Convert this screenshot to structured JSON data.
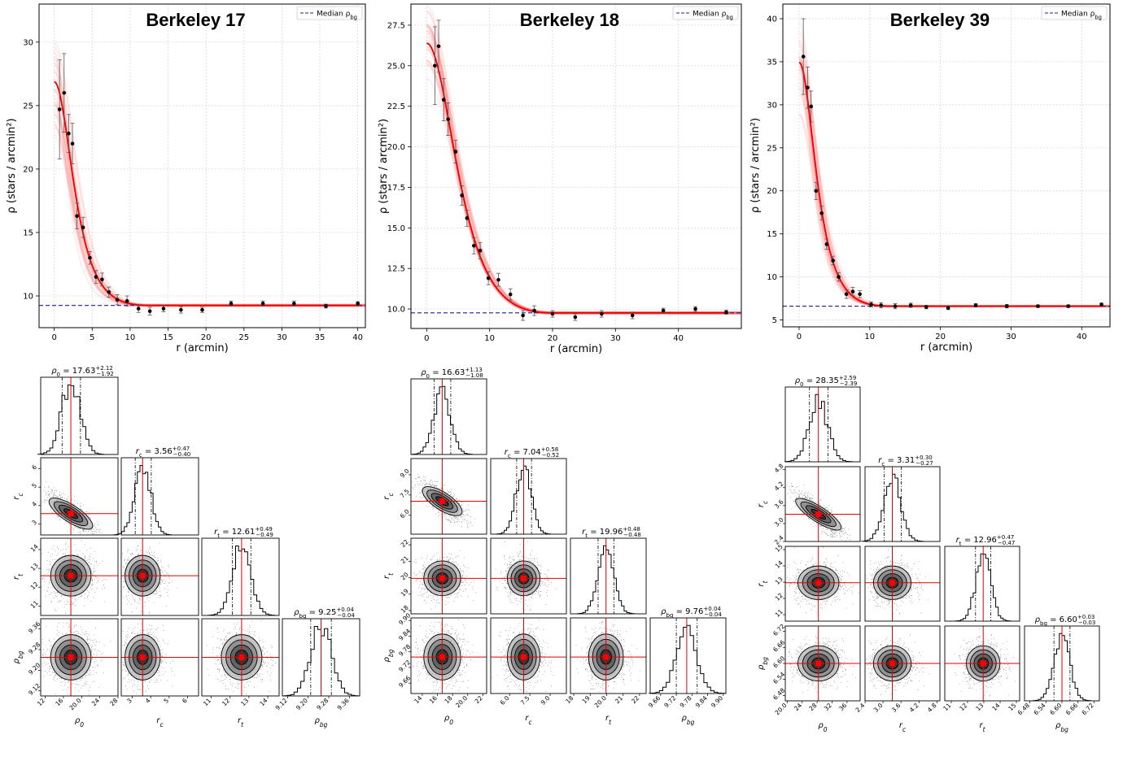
{
  "panels": [
    {
      "cluster": "Berkeley 17",
      "legend_label": "Median ρ_bg",
      "profile": {
        "xlabel": "r (arcmin)",
        "ylabel": "ρ (stars / arcmin²)",
        "xlim": [
          -2,
          41
        ],
        "ylim": [
          7.5,
          33
        ],
        "xticks": [
          0,
          5,
          10,
          15,
          20,
          25,
          30,
          35,
          40
        ],
        "yticks": [
          10,
          15,
          20,
          25,
          30
        ],
        "model": {
          "rho0": 17.63,
          "rc": 3.56,
          "rt": 12.61,
          "rho_bg": 9.25
        },
        "points": [
          {
            "x": 0.7,
            "y": 24.7,
            "err": 3.9
          },
          {
            "x": 1.3,
            "y": 26.0,
            "err": 3.1
          },
          {
            "x": 1.9,
            "y": 22.8,
            "err": 1.5
          },
          {
            "x": 2.4,
            "y": 22.0,
            "err": 1.6
          },
          {
            "x": 3.0,
            "y": 16.3,
            "err": 1.0
          },
          {
            "x": 3.8,
            "y": 15.4,
            "err": 0.8
          },
          {
            "x": 4.7,
            "y": 13.0,
            "err": 0.5
          },
          {
            "x": 5.5,
            "y": 11.5,
            "err": 0.5
          },
          {
            "x": 6.3,
            "y": 11.3,
            "err": 0.5
          },
          {
            "x": 7.2,
            "y": 10.3,
            "err": 0.4
          },
          {
            "x": 8.3,
            "y": 9.7,
            "err": 0.4
          },
          {
            "x": 9.6,
            "y": 9.6,
            "err": 0.4
          },
          {
            "x": 11.1,
            "y": 9.0,
            "err": 0.3
          },
          {
            "x": 12.6,
            "y": 8.8,
            "err": 0.3
          },
          {
            "x": 14.4,
            "y": 9.0,
            "err": 0.25
          },
          {
            "x": 16.7,
            "y": 8.9,
            "err": 0.25
          },
          {
            "x": 19.5,
            "y": 8.9,
            "err": 0.2
          },
          {
            "x": 23.3,
            "y": 9.4,
            "err": 0.2
          },
          {
            "x": 27.5,
            "y": 9.4,
            "err": 0.2
          },
          {
            "x": 31.6,
            "y": 9.4,
            "err": 0.2
          },
          {
            "x": 35.8,
            "y": 9.2,
            "err": 0.15
          },
          {
            "x": 40.0,
            "y": 9.4,
            "err": 0.15
          }
        ]
      },
      "params": [
        {
          "label": "ρ₀",
          "title": "ρ₀ = 17.63",
          "med": 17.63,
          "plus": 2.12,
          "minus": 1.92,
          "sup": "+2.12",
          "sub": "−1.92",
          "lim": [
            11,
            28
          ],
          "ticks": [
            12,
            16,
            20,
            24,
            28
          ]
        },
        {
          "label": "r_c",
          "title": "r_c = 3.56",
          "med": 3.56,
          "plus": 0.47,
          "minus": 0.4,
          "sup": "+0.47",
          "sub": "−0.40",
          "lim": [
            2.4,
            6.6
          ],
          "ticks": [
            3,
            4,
            5,
            6
          ]
        },
        {
          "label": "r_t",
          "title": "r_t = 12.61",
          "med": 12.61,
          "plus": 0.49,
          "minus": 0.49,
          "sup": "+0.49",
          "sub": "−0.49",
          "lim": [
            10.5,
            14.6
          ],
          "ticks": [
            11,
            12,
            13,
            14
          ]
        },
        {
          "label": "ρ_bg",
          "title": "ρ_bg = 9.25",
          "med": 9.25,
          "plus": 0.04,
          "minus": 0.04,
          "sup": "+0.04",
          "sub": "−0.04",
          "lim": [
            9.1,
            9.4
          ],
          "ticks": [
            9.12,
            9.2,
            9.28,
            9.36
          ]
        }
      ],
      "corr01": -0.8
    },
    {
      "cluster": "Berkeley 18",
      "legend_label": "Median ρ_bg",
      "profile": {
        "xlabel": "r (arcmin)",
        "ylabel": "ρ (stars / arcmin²)",
        "xlim": [
          -2.5,
          50
        ],
        "ylim": [
          8.8,
          28.8
        ],
        "xticks": [
          0,
          10,
          20,
          30,
          40
        ],
        "yticks": [
          10.0,
          12.5,
          15.0,
          17.5,
          20.0,
          22.5,
          25.0,
          27.5
        ],
        "model": {
          "rho0": 16.63,
          "rc": 7.04,
          "rt": 19.96,
          "rho_bg": 9.76
        },
        "points": [
          {
            "x": 1.3,
            "y": 25.0,
            "err": 2.4
          },
          {
            "x": 1.9,
            "y": 26.2,
            "err": 1.6
          },
          {
            "x": 2.7,
            "y": 22.9,
            "err": 1.3
          },
          {
            "x": 3.4,
            "y": 21.7,
            "err": 1.0
          },
          {
            "x": 4.6,
            "y": 19.7,
            "err": 0.7
          },
          {
            "x": 5.6,
            "y": 17.0,
            "err": 0.6
          },
          {
            "x": 6.4,
            "y": 15.6,
            "err": 0.5
          },
          {
            "x": 7.5,
            "y": 13.9,
            "err": 0.5
          },
          {
            "x": 8.5,
            "y": 13.6,
            "err": 0.5
          },
          {
            "x": 9.8,
            "y": 11.9,
            "err": 0.4
          },
          {
            "x": 11.4,
            "y": 11.8,
            "err": 0.4
          },
          {
            "x": 13.3,
            "y": 10.9,
            "err": 0.35
          },
          {
            "x": 15.3,
            "y": 9.6,
            "err": 0.3
          },
          {
            "x": 17.1,
            "y": 9.9,
            "err": 0.3
          },
          {
            "x": 20.0,
            "y": 9.7,
            "err": 0.2
          },
          {
            "x": 23.6,
            "y": 9.5,
            "err": 0.2
          },
          {
            "x": 27.8,
            "y": 9.7,
            "err": 0.2
          },
          {
            "x": 32.7,
            "y": 9.6,
            "err": 0.2
          },
          {
            "x": 37.6,
            "y": 9.9,
            "err": 0.15
          },
          {
            "x": 42.7,
            "y": 10.0,
            "err": 0.15
          },
          {
            "x": 47.6,
            "y": 9.8,
            "err": 0.12
          }
        ]
      },
      "params": [
        {
          "label": "ρ₀",
          "title": "ρ₀ = 16.63",
          "med": 16.63,
          "plus": 1.13,
          "minus": 1.08,
          "sup": "+1.13",
          "sub": "−1.08",
          "lim": [
            12.5,
            22.5
          ],
          "ticks": [
            14,
            16,
            18,
            20,
            22
          ]
        },
        {
          "label": "r_c",
          "title": "r_c = 7.04",
          "med": 7.04,
          "plus": 0.58,
          "minus": 0.52,
          "sup": "+0.58",
          "sub": "−0.52",
          "lim": [
            4.6,
            10.2
          ],
          "ticks": [
            6.0,
            7.5,
            9.0
          ]
        },
        {
          "label": "r_t",
          "title": "r_t = 19.96",
          "med": 19.96,
          "plus": 0.48,
          "minus": 0.48,
          "sup": "+0.48",
          "sub": "−0.48",
          "lim": [
            17.8,
            22.4
          ],
          "ticks": [
            18,
            19,
            20,
            21,
            22
          ]
        },
        {
          "label": "ρ_bg",
          "title": "ρ_bg = 9.76",
          "med": 9.76,
          "plus": 0.04,
          "minus": 0.04,
          "sup": "+0.04",
          "sub": "−0.04",
          "lim": [
            9.62,
            9.91
          ],
          "ticks": [
            9.66,
            9.72,
            9.78,
            9.84,
            9.9
          ]
        }
      ],
      "corr01": -0.75
    },
    {
      "cluster": "Berkeley 39",
      "legend_label": "Median ρ_bg",
      "profile": {
        "xlabel": "r (arcmin)",
        "ylabel": "ρ (stars / arcmin²)",
        "xlim": [
          -2.3,
          44
        ],
        "ylim": [
          4.2,
          41.7
        ],
        "xticks": [
          0,
          10,
          20,
          30,
          40
        ],
        "yticks": [
          5,
          10,
          15,
          20,
          25,
          30,
          35,
          40
        ],
        "model": {
          "rho0": 28.35,
          "rc": 3.31,
          "rt": 12.96,
          "rho_bg": 6.6
        },
        "points": [
          {
            "x": 0.6,
            "y": 35.6,
            "err": 4.4
          },
          {
            "x": 1.2,
            "y": 32.0,
            "err": 2.4
          },
          {
            "x": 1.7,
            "y": 29.8,
            "err": 1.8
          },
          {
            "x": 2.4,
            "y": 20.0,
            "err": 1.0
          },
          {
            "x": 3.2,
            "y": 17.4,
            "err": 0.8
          },
          {
            "x": 3.9,
            "y": 13.8,
            "err": 0.6
          },
          {
            "x": 4.8,
            "y": 11.9,
            "err": 0.5
          },
          {
            "x": 5.6,
            "y": 10.0,
            "err": 0.5
          },
          {
            "x": 6.7,
            "y": 8.0,
            "err": 0.5
          },
          {
            "x": 7.6,
            "y": 8.3,
            "err": 0.5
          },
          {
            "x": 8.6,
            "y": 8.0,
            "err": 0.4
          },
          {
            "x": 10.2,
            "y": 6.8,
            "err": 0.3
          },
          {
            "x": 11.6,
            "y": 6.7,
            "err": 0.3
          },
          {
            "x": 13.6,
            "y": 6.6,
            "err": 0.3
          },
          {
            "x": 15.8,
            "y": 6.7,
            "err": 0.25
          },
          {
            "x": 18.0,
            "y": 6.5,
            "err": 0.2
          },
          {
            "x": 21.1,
            "y": 6.4,
            "err": 0.2
          },
          {
            "x": 25.0,
            "y": 6.7,
            "err": 0.2
          },
          {
            "x": 29.4,
            "y": 6.6,
            "err": 0.2
          },
          {
            "x": 33.8,
            "y": 6.6,
            "err": 0.15
          },
          {
            "x": 38.1,
            "y": 6.6,
            "err": 0.15
          },
          {
            "x": 42.8,
            "y": 6.8,
            "err": 0.15
          }
        ]
      },
      "params": [
        {
          "label": "ρ₀",
          "title": "ρ₀ = 28.35",
          "med": 28.35,
          "plus": 2.59,
          "minus": 2.39,
          "sup": "+2.59",
          "sub": "−2.39",
          "lim": [
            19.5,
            39.5
          ],
          "ticks": [
            20,
            24,
            28,
            32,
            36
          ]
        },
        {
          "label": "r_c",
          "title": "r_c = 3.31",
          "med": 3.31,
          "plus": 0.3,
          "minus": 0.27,
          "sup": "+0.30",
          "sub": "−0.27",
          "lim": [
            2.4,
            4.9
          ],
          "ticks": [
            2.4,
            3.0,
            3.6,
            4.2,
            4.8
          ]
        },
        {
          "label": "r_t",
          "title": "r_t = 12.96",
          "med": 12.96,
          "plus": 0.47,
          "minus": 0.47,
          "sup": "+0.47",
          "sub": "−0.47",
          "lim": [
            10.6,
            15.2
          ],
          "ticks": [
            11,
            12,
            13,
            14,
            15
          ]
        },
        {
          "label": "ρ_bg",
          "title": "ρ_bg = 6.60",
          "med": 6.6,
          "plus": 0.03,
          "minus": 0.03,
          "sup": "+0.03",
          "sub": "−0.03",
          "lim": [
            6.46,
            6.74
          ],
          "ticks": [
            6.48,
            6.54,
            6.6,
            6.66,
            6.72
          ]
        }
      ],
      "corr01": -0.85
    }
  ],
  "chart_data": [
    {
      "type": "scatter",
      "title": "Berkeley 17",
      "xlabel": "r (arcmin)",
      "ylabel": "ρ (stars / arcmin²)",
      "xlim": [
        -2,
        41
      ],
      "ylim": [
        7.5,
        33
      ],
      "grid": true,
      "legend": "top-right",
      "series": [
        {
          "name": "Median ρ_bg",
          "y_constant": 9.25
        }
      ]
    },
    {
      "type": "scatter",
      "title": "Berkeley 18",
      "xlabel": "r (arcmin)",
      "ylabel": "ρ (stars / arcmin²)",
      "xlim": [
        -2.5,
        50
      ],
      "ylim": [
        8.8,
        28.8
      ],
      "grid": true,
      "legend": "top-right",
      "series": [
        {
          "name": "Median ρ_bg",
          "y_constant": 9.76
        }
      ]
    },
    {
      "type": "scatter",
      "title": "Berkeley 39",
      "xlabel": "r (arcmin)",
      "ylabel": "ρ (stars / arcmin²)",
      "xlim": [
        -2.3,
        44
      ],
      "ylim": [
        4.2,
        41.7
      ],
      "grid": true,
      "legend": "top-right",
      "series": [
        {
          "name": "Median ρ_bg",
          "y_constant": 6.6
        }
      ]
    }
  ]
}
